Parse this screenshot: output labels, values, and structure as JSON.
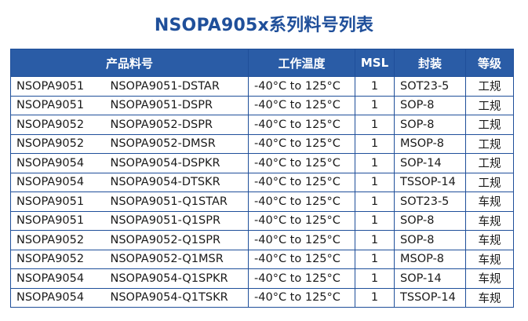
{
  "title": "NSOPA905x系列料号列表",
  "headers": {
    "part_number": "产品料号",
    "temp": "工作温度",
    "msl": "MSL",
    "package": "封装",
    "grade": "等级"
  },
  "rows": [
    {
      "series": "NSOPA9051",
      "part": "NSOPA9051-DSTAR",
      "temp": "-40°C to 125°C",
      "msl": "1",
      "package": "SOT23-5",
      "grade": "工规"
    },
    {
      "series": "NSOPA9051",
      "part": "NSOPA9051-DSPR",
      "temp": "-40°C to 125°C",
      "msl": "1",
      "package": "SOP-8",
      "grade": "工规"
    },
    {
      "series": "NSOPA9052",
      "part": "NSOPA9052-DSPR",
      "temp": "-40°C to 125°C",
      "msl": "1",
      "package": "SOP-8",
      "grade": "工规"
    },
    {
      "series": "NSOPA9052",
      "part": "NSOPA9052-DMSR",
      "temp": "-40°C to 125°C",
      "msl": "1",
      "package": "MSOP-8",
      "grade": "工规"
    },
    {
      "series": "NSOPA9054",
      "part": "NSOPA9054-DSPKR",
      "temp": "-40°C to 125°C",
      "msl": "1",
      "package": "SOP-14",
      "grade": "工规"
    },
    {
      "series": "NSOPA9054",
      "part": "NSOPA9054-DTSKR",
      "temp": "-40°C to 125°C",
      "msl": "1",
      "package": "TSSOP-14",
      "grade": "工规"
    },
    {
      "series": "NSOPA9051",
      "part": "NSOPA9051-Q1STAR",
      "temp": "-40°C to 125°C",
      "msl": "1",
      "package": "SOT23-5",
      "grade": "车规"
    },
    {
      "series": "NSOPA9051",
      "part": "NSOPA9051-Q1SPR",
      "temp": "-40°C to 125°C",
      "msl": "1",
      "package": "SOP-8",
      "grade": "车规"
    },
    {
      "series": "NSOPA9052",
      "part": "NSOPA9052-Q1SPR",
      "temp": "-40°C to 125°C",
      "msl": "1",
      "package": "SOP-8",
      "grade": "车规"
    },
    {
      "series": "NSOPA9052",
      "part": "NSOPA9052-Q1MSR",
      "temp": "-40°C to 125°C",
      "msl": "1",
      "package": "MSOP-8",
      "grade": "车规"
    },
    {
      "series": "NSOPA9054",
      "part": "NSOPA9054-Q1SPKR",
      "temp": "-40°C to 125°C",
      "msl": "1",
      "package": "SOP-14",
      "grade": "车规"
    },
    {
      "series": "NSOPA9054",
      "part": "NSOPA9054-Q1TSKR",
      "temp": "-40°C to 125°C",
      "msl": "1",
      "package": "TSSOP-14",
      "grade": "车规"
    }
  ],
  "colors": {
    "title": "#1f4f9a",
    "header_bg": "#2a5ca6",
    "border": "#1f4f9a"
  }
}
